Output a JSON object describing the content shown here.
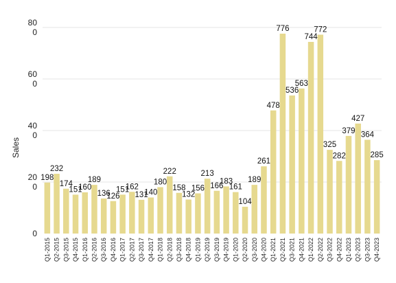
{
  "chart_data": {
    "type": "bar",
    "ylabel": "Sales",
    "xlabel": "",
    "ylim": [
      0,
      800
    ],
    "y_ticks": [
      0,
      200,
      400,
      600,
      800
    ],
    "grid": true,
    "bar_color": "#e6d98f",
    "categories": [
      "Q1-2015",
      "Q2-2015",
      "Q3-2015",
      "Q4-2015",
      "Q1-2016",
      "Q2-2016",
      "Q3-2016",
      "Q4-2016",
      "Q1-2017",
      "Q2-2017",
      "Q3-2017",
      "Q4-2017",
      "Q1-2018",
      "Q2-2018",
      "Q3-2018",
      "Q4-2018",
      "Q1-2019",
      "Q2-2019",
      "Q3-2019",
      "Q4-2019",
      "Q1-2020",
      "Q2-2020",
      "Q3-2020",
      "Q4-2020",
      "Q1-2021",
      "Q2-2021",
      "Q3-2021",
      "Q4-2021",
      "Q1-2022",
      "Q2-2022",
      "Q3-2022",
      "Q4-2022",
      "Q1-2023",
      "Q2-2023",
      "Q3-2023",
      "Q4-2023"
    ],
    "values": [
      198,
      232,
      174,
      151,
      160,
      189,
      136,
      126,
      151,
      162,
      131,
      140,
      180,
      222,
      158,
      132,
      156,
      213,
      166,
      183,
      161,
      104,
      189,
      261,
      478,
      776,
      536,
      563,
      744,
      772,
      325,
      282,
      379,
      427,
      364,
      285
    ]
  }
}
